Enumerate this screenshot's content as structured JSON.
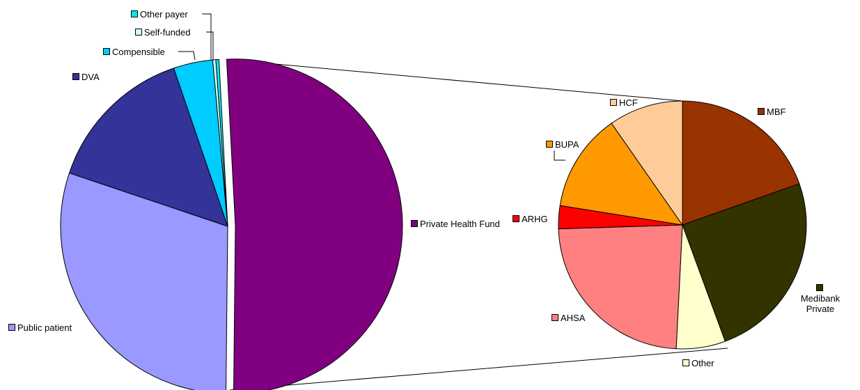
{
  "chart_data": [
    {
      "type": "pie",
      "categories": [
        "Private Health Fund",
        "Public patient",
        "DVA",
        "Compensible",
        "Self-funded",
        "Other payer"
      ],
      "values": [
        51,
        30,
        14.6,
        3.8,
        0.3,
        0.3
      ],
      "colors": [
        "#800080",
        "#9999ff",
        "#333399",
        "#00ccff",
        "#ccffff",
        "#00e8f0"
      ]
    },
    {
      "type": "pie",
      "categories": [
        "MBF",
        "Medibank Private",
        "Other",
        "AHSA",
        "ARHG",
        "BUPA",
        "HCF"
      ],
      "values": [
        19.6,
        24.8,
        6.4,
        23.7,
        3,
        12.8,
        9.7
      ],
      "colors": [
        "#993300",
        "#333300",
        "#ffffcc",
        "#ff8080",
        "#ff0000",
        "#ff9900",
        "#ffcc99"
      ]
    }
  ]
}
